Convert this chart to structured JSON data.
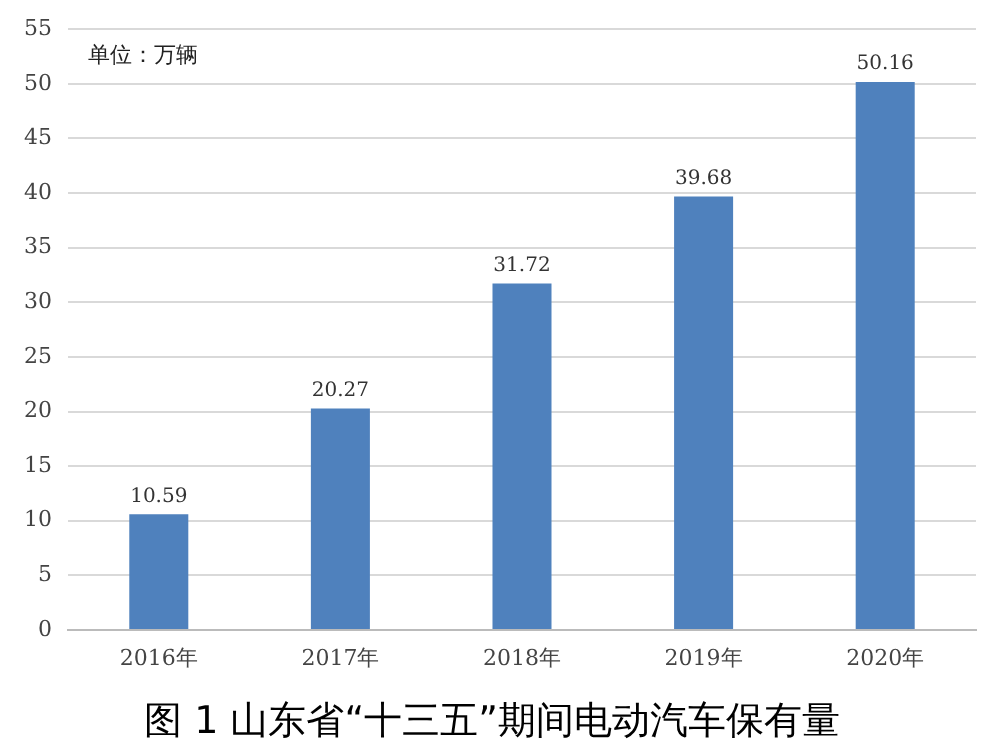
{
  "chart_data": {
    "type": "bar",
    "title": "图 1 山东省“十三五”期间电动汽车保有量",
    "categories": [
      "2016年",
      "2017年",
      "2018年",
      "2019年",
      "2020年"
    ],
    "values": [
      10.59,
      20.27,
      31.72,
      39.68,
      50.16
    ],
    "color": "#4f81bd",
    "ylim": [
      0,
      55
    ],
    "yticks": [
      0,
      5,
      10,
      15,
      20,
      25,
      30,
      35,
      40,
      45,
      50,
      55
    ],
    "grid": "y",
    "data_labels": true,
    "annotations": [
      "单位：万辆"
    ]
  }
}
